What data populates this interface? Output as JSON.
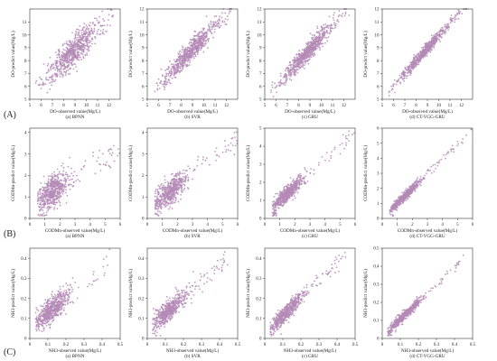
{
  "colors": {
    "points": "#b48ab6",
    "axes": "#333333",
    "text": "#222222"
  },
  "row_labels": [
    "(A)",
    "(B)",
    "(C)"
  ],
  "chart_data": [
    {
      "type": "scatter",
      "row": 0,
      "col": 0,
      "subtitle": "(a) BPNN",
      "xlabel": "DO-observed value(Mg/L)",
      "ylabel": "DO-predict value(Mg/L)",
      "xlim": [
        5,
        13
      ],
      "ylim": [
        5,
        12
      ],
      "xticks": [
        5,
        6,
        7,
        8,
        9,
        10,
        11,
        12
      ],
      "yticks": [
        5,
        6,
        7,
        8,
        9,
        10,
        11
      ],
      "center": [
        8.8,
        8.8
      ],
      "spread": 1.4,
      "trend": [
        [
          5.5,
          5.9
        ],
        [
          12.5,
          11.8
        ]
      ],
      "noise": 0.55,
      "n": 700
    },
    {
      "type": "scatter",
      "row": 0,
      "col": 1,
      "subtitle": "(b) SVR",
      "xlabel": "DO-observed value(Mg/L)",
      "ylabel": "DO-predict value(Mg/L)",
      "xlim": [
        5,
        13
      ],
      "ylim": [
        5,
        12
      ],
      "xticks": [
        5,
        6,
        7,
        8,
        9,
        10,
        11,
        12
      ],
      "yticks": [
        5,
        6,
        7,
        8,
        9,
        10,
        11,
        12
      ],
      "center": [
        8.8,
        8.8
      ],
      "spread": 1.4,
      "trend": [
        [
          5.5,
          5.6
        ],
        [
          12.5,
          12.1
        ]
      ],
      "noise": 0.42,
      "n": 700
    },
    {
      "type": "scatter",
      "row": 0,
      "col": 2,
      "subtitle": "(c) GRU",
      "xlabel": "DO-observed value(Mg/L)",
      "ylabel": "DO-predict value(Mg/L)",
      "xlim": [
        5,
        13
      ],
      "ylim": [
        5,
        12
      ],
      "xticks": [
        5,
        6,
        7,
        8,
        9,
        10,
        11,
        12
      ],
      "yticks": [
        5,
        6,
        7,
        8,
        9,
        10,
        11,
        12
      ],
      "center": [
        8.8,
        8.8
      ],
      "spread": 1.4,
      "trend": [
        [
          5.5,
          5.5
        ],
        [
          12.5,
          12.2
        ]
      ],
      "noise": 0.35,
      "n": 700
    },
    {
      "type": "scatter",
      "row": 0,
      "col": 3,
      "subtitle": "(d) CT-VGG-GRU",
      "xlabel": "DO-observed value(Mg/L)",
      "ylabel": "DO-predict value(Mg/L)",
      "xlim": [
        5,
        13
      ],
      "ylim": [
        5,
        12
      ],
      "xticks": [
        5,
        6,
        7,
        8,
        9,
        10,
        11,
        12
      ],
      "yticks": [
        5,
        6,
        7,
        8,
        9,
        10,
        11,
        12
      ],
      "center": [
        8.8,
        8.8
      ],
      "spread": 1.4,
      "trend": [
        [
          5.5,
          5.5
        ],
        [
          12.5,
          12.4
        ]
      ],
      "noise": 0.22,
      "n": 700
    },
    {
      "type": "scatter",
      "row": 1,
      "col": 0,
      "subtitle": "(a) BPNN",
      "xlabel": "CODMn-observed value(Mg/L)",
      "ylabel": "CODMn-predict value(Mg/L)",
      "xlim": [
        0,
        6
      ],
      "ylim": [
        0,
        4.2
      ],
      "xticks": [
        0,
        1,
        2,
        3,
        4,
        5,
        6
      ],
      "yticks": [
        0,
        1,
        2,
        3,
        4
      ],
      "center": [
        1.5,
        1.5
      ],
      "spread": 0.7,
      "trend": [
        [
          0.5,
          0.8
        ],
        [
          6,
          3.3
        ]
      ],
      "noise": 0.35,
      "n": 600
    },
    {
      "type": "scatter",
      "row": 1,
      "col": 1,
      "subtitle": "(b) SVR",
      "xlabel": "CODMn-observed value(Mg/L)",
      "ylabel": "CODMn-predict value(Mg/L)",
      "xlim": [
        0,
        6
      ],
      "ylim": [
        0,
        4.2
      ],
      "xticks": [
        0,
        1,
        2,
        3,
        4,
        5,
        6
      ],
      "yticks": [
        0,
        1,
        2,
        3,
        4
      ],
      "center": [
        1.5,
        1.5
      ],
      "spread": 0.7,
      "trend": [
        [
          0.5,
          0.7
        ],
        [
          6,
          3.6
        ]
      ],
      "noise": 0.28,
      "n": 600
    },
    {
      "type": "scatter",
      "row": 1,
      "col": 2,
      "subtitle": "(c) GRU",
      "xlabel": "CODMn-observed value(Mg/L)",
      "ylabel": "CODMn-predict value(Mg/L)",
      "xlim": [
        0,
        6
      ],
      "ylim": [
        0,
        5
      ],
      "xticks": [
        0,
        1,
        2,
        3,
        4,
        5,
        6
      ],
      "yticks": [
        0,
        1,
        2,
        3,
        4,
        5
      ],
      "center": [
        1.5,
        1.5
      ],
      "spread": 0.7,
      "trend": [
        [
          0.5,
          0.6
        ],
        [
          6,
          4.8
        ]
      ],
      "noise": 0.22,
      "n": 600
    },
    {
      "type": "scatter",
      "row": 1,
      "col": 3,
      "subtitle": "(d) CT-VGG-GRU",
      "xlabel": "CODMn-observed value(Mg/L)",
      "ylabel": "CODMn-predict value(Mg/L)",
      "xlim": [
        0,
        6
      ],
      "ylim": [
        0,
        6
      ],
      "xticks": [
        0,
        1,
        2,
        3,
        4,
        5,
        6
      ],
      "yticks": [
        0,
        1,
        2,
        3,
        4,
        5,
        6
      ],
      "center": [
        1.5,
        1.5
      ],
      "spread": 0.7,
      "trend": [
        [
          0.5,
          0.5
        ],
        [
          6,
          5.9
        ]
      ],
      "noise": 0.14,
      "n": 600
    },
    {
      "type": "scatter",
      "row": 2,
      "col": 0,
      "subtitle": "(a) BPNN",
      "xlabel": "NH3-observed value(Mg/L)",
      "ylabel": "NH3-predict value(Mg/L)",
      "xlim": [
        0,
        0.5
      ],
      "ylim": [
        0,
        0.45
      ],
      "xticks": [
        0,
        0.1,
        0.2,
        0.3,
        0.4,
        0.5
      ],
      "yticks": [
        0,
        0.1,
        0.2,
        0.3,
        0.4
      ],
      "center": [
        0.12,
        0.12
      ],
      "spread": 0.06,
      "trend": [
        [
          0.03,
          0.08
        ],
        [
          0.45,
          0.38
        ]
      ],
      "noise": 0.03,
      "n": 600
    },
    {
      "type": "scatter",
      "row": 2,
      "col": 1,
      "subtitle": "(b) SVR",
      "xlabel": "NH3-observed value(Mg/L)",
      "ylabel": "NH3-predict value(Mg/L)",
      "xlim": [
        0,
        0.5
      ],
      "ylim": [
        0,
        0.45
      ],
      "xticks": [
        0,
        0.1,
        0.2,
        0.3,
        0.4,
        0.5
      ],
      "yticks": [
        0,
        0.1,
        0.2,
        0.3,
        0.4
      ],
      "center": [
        0.12,
        0.12
      ],
      "spread": 0.06,
      "trend": [
        [
          0.03,
          0.07
        ],
        [
          0.45,
          0.4
        ]
      ],
      "noise": 0.025,
      "n": 600
    },
    {
      "type": "scatter",
      "row": 2,
      "col": 2,
      "subtitle": "(c) GRU",
      "xlabel": "NH3-observed value(Mg/L)",
      "ylabel": "NH3-predict value(Mg/L)",
      "xlim": [
        0,
        0.5
      ],
      "ylim": [
        0,
        0.45
      ],
      "xticks": [
        0,
        0.1,
        0.2,
        0.3,
        0.4,
        0.5
      ],
      "yticks": [
        0,
        0.1,
        0.2,
        0.3,
        0.4
      ],
      "center": [
        0.12,
        0.12
      ],
      "spread": 0.06,
      "trend": [
        [
          0.03,
          0.05
        ],
        [
          0.45,
          0.42
        ]
      ],
      "noise": 0.02,
      "n": 600
    },
    {
      "type": "scatter",
      "row": 2,
      "col": 3,
      "subtitle": "(d) CT-VGG-GRU",
      "xlabel": "NH3-observed value(Mg/L)",
      "ylabel": "NH3-predict value(Mg/L)",
      "xlim": [
        0,
        0.5
      ],
      "ylim": [
        0,
        0.5
      ],
      "xticks": [
        0,
        0.1,
        0.2,
        0.3,
        0.4,
        0.5
      ],
      "yticks": [
        0,
        0.1,
        0.2,
        0.3,
        0.4,
        0.5
      ],
      "center": [
        0.12,
        0.12
      ],
      "spread": 0.06,
      "trend": [
        [
          0.03,
          0.04
        ],
        [
          0.45,
          0.44
        ]
      ],
      "noise": 0.012,
      "n": 600
    }
  ]
}
